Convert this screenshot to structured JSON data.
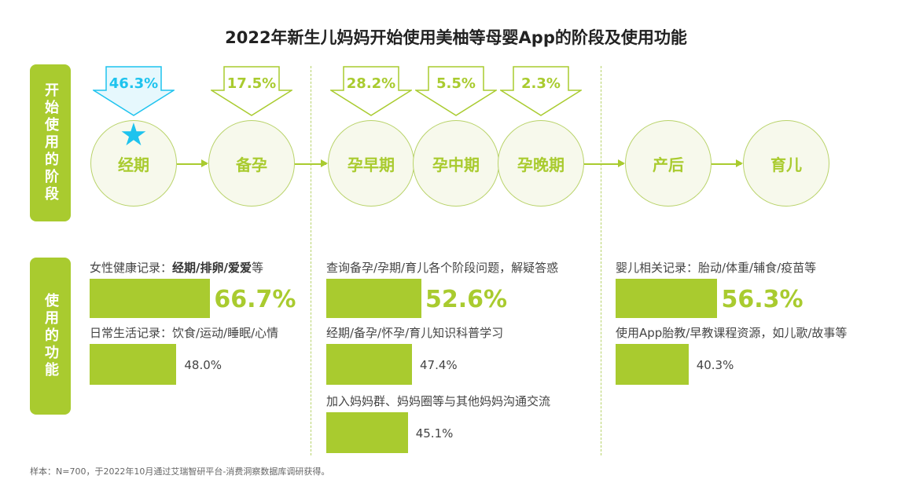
{
  "title": "2022年新生儿妈妈开始使用美柚等母婴App的阶段及使用功能",
  "side_labels": {
    "stages": "开始使用的阶段",
    "functions": "使用的功能"
  },
  "stages": [
    {
      "name": "经期",
      "pct": "46.3%",
      "highlight": true
    },
    {
      "name": "备孕",
      "pct": "17.5%"
    },
    {
      "name": "孕早期",
      "pct": "28.2%"
    },
    {
      "name": "孕中期",
      "pct": "5.5%"
    },
    {
      "name": "孕晚期",
      "pct": "2.3%"
    },
    {
      "name": "产后"
    },
    {
      "name": "育儿"
    }
  ],
  "functions": [
    [
      {
        "label_plain": "女性健康记录：",
        "label_bold": "经期/排卵/爱爱",
        "label_tail": "等",
        "value": 66.7,
        "value_text": "66.7%",
        "emphasis": true
      },
      {
        "label_plain": "日常生活记录：饮食/运动/睡眠/心情",
        "value": 48.0,
        "value_text": "48.0%"
      }
    ],
    [
      {
        "label_plain": "查询备孕/孕期/育儿各个阶段问题，解疑答惑",
        "value": 52.6,
        "value_text": "52.6%",
        "emphasis": true
      },
      {
        "label_plain": "经期/备孕/怀孕/育儿知识科普学习",
        "value": 47.4,
        "value_text": "47.4%"
      },
      {
        "label_plain": "加入妈妈群、妈妈圈等与其他妈妈沟通交流",
        "value": 45.1,
        "value_text": "45.1%"
      }
    ],
    [
      {
        "label_plain": "婴儿相关记录：胎动/体重/辅食/疫苗等",
        "value": 56.3,
        "value_text": "56.3%",
        "emphasis": true
      },
      {
        "label_plain": "使用App胎教/早教课程资源，如儿歌/故事等",
        "value": 40.3,
        "value_text": "40.3%"
      }
    ]
  ],
  "colors": {
    "green": "#a9cb2f",
    "highlight": "#1ec3ee"
  },
  "note": "样本：N=700，于2022年10月通过艾瑞智研平台-消费洞察数据库调研获得。"
}
